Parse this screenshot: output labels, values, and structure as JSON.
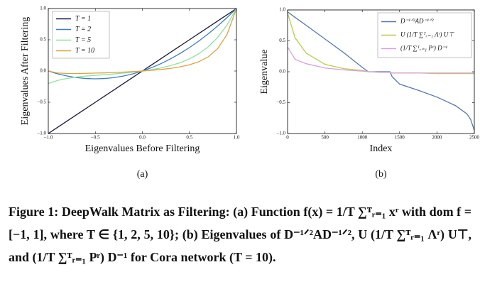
{
  "chart_data": [
    {
      "type": "line",
      "panel_label": "(a)",
      "xlabel": "Eigenvalues Before Filtering",
      "ylabel": "Eigenvalues After Filtering",
      "x": [
        -1.0,
        -0.9,
        -0.8,
        -0.7,
        -0.6,
        -0.5,
        -0.4,
        -0.3,
        -0.2,
        -0.1,
        0.0,
        0.1,
        0.2,
        0.3,
        0.4,
        0.5,
        0.6,
        0.7,
        0.8,
        0.9,
        1.0
      ],
      "series": [
        {
          "name": "T = 1",
          "color": "#1c1c3c",
          "values": [
            -1.0,
            -0.9,
            -0.8,
            -0.7,
            -0.6,
            -0.5,
            -0.4,
            -0.3,
            -0.2,
            -0.1,
            0.0,
            0.1,
            0.2,
            0.3,
            0.4,
            0.5,
            0.6,
            0.7,
            0.8,
            0.9,
            1.0
          ]
        },
        {
          "name": "T = 2",
          "color": "#3b7fc0",
          "values": [
            0.0,
            -0.045,
            -0.08,
            -0.105,
            -0.12,
            -0.125,
            -0.12,
            -0.105,
            -0.08,
            -0.045,
            0.0,
            0.055,
            0.12,
            0.195,
            0.28,
            0.375,
            0.48,
            0.595,
            0.72,
            0.855,
            1.0
          ]
        },
        {
          "name": "T = 5",
          "color": "#8fe0a0",
          "values": [
            -0.2,
            -0.151,
            -0.118,
            -0.096,
            -0.081,
            -0.069,
            -0.058,
            -0.046,
            -0.033,
            -0.018,
            0.0,
            0.022,
            0.05,
            0.086,
            0.132,
            0.194,
            0.277,
            0.388,
            0.538,
            0.737,
            1.0
          ]
        },
        {
          "name": "T = 10",
          "color": "#e0a040",
          "values": [
            0.0,
            -0.031,
            -0.04,
            -0.04,
            -0.037,
            -0.033,
            -0.029,
            -0.023,
            -0.017,
            -0.009,
            0.0,
            0.011,
            0.025,
            0.043,
            0.067,
            0.1,
            0.149,
            0.227,
            0.357,
            0.586,
            1.0
          ]
        }
      ],
      "xlim": [
        -1.0,
        1.0
      ],
      "ylim": [
        -1.0,
        1.0
      ],
      "xticks": [
        {
          "value": -1.0,
          "label": "−1.0"
        },
        {
          "value": -0.5,
          "label": "−0.5"
        },
        {
          "value": 0.0,
          "label": "0.0"
        },
        0.5,
        {
          "value": 1.0,
          "label": "1.0"
        }
      ],
      "yticks": [
        {
          "value": -1.0,
          "label": "−1.0"
        },
        {
          "value": -0.5,
          "label": "−0.5"
        },
        {
          "value": 0.0,
          "label": "0.0"
        },
        0.5,
        {
          "value": 1.0,
          "label": "1.0"
        }
      ],
      "grid": false,
      "legend": "upper-left"
    },
    {
      "type": "line",
      "panel_label": "(b)",
      "xlabel": "Index",
      "ylabel": "Eigenvalue",
      "x": [
        0,
        100,
        250,
        500,
        750,
        1000,
        1080,
        1250,
        1370,
        1400,
        1500,
        1750,
        2000,
        2250,
        2400,
        2450,
        2500
      ],
      "series": [
        {
          "name": "D⁻¹ᐟ²AD⁻¹ᐟ²",
          "color": "#5577b0",
          "values": [
            0.97,
            0.88,
            0.75,
            0.53,
            0.31,
            0.07,
            0.0,
            0.0,
            0.0,
            -0.08,
            -0.2,
            -0.3,
            -0.41,
            -0.55,
            -0.68,
            -0.77,
            -0.95
          ]
        },
        {
          "name": "U (1/T ∑ᵀᵣ₌₁ Λʳ) U⊤",
          "color": "#b8cc48",
          "values": [
            0.95,
            0.55,
            0.3,
            0.12,
            0.05,
            0.02,
            0.0,
            -0.01,
            -0.01,
            -0.02,
            -0.02,
            -0.02,
            -0.03,
            -0.03,
            -0.03,
            -0.03,
            -0.03
          ]
        },
        {
          "name": "(1/T ∑ᵀᵣ₌₁ Pʳ) D⁻¹",
          "color": "#d8a0e0",
          "values": [
            0.4,
            0.2,
            0.13,
            0.06,
            0.03,
            0.01,
            0.0,
            -0.01,
            -0.01,
            -0.02,
            -0.02,
            -0.02,
            -0.02,
            -0.02,
            -0.02,
            -0.02,
            -0.02
          ]
        }
      ],
      "xlim": [
        0,
        2500
      ],
      "ylim": [
        -1.0,
        1.0
      ],
      "xticks": [
        0,
        500,
        1000,
        1500,
        2000,
        2500
      ],
      "yticks": [
        {
          "value": -1.0,
          "label": "−1.0"
        },
        {
          "value": -0.5,
          "label": "−0.5"
        },
        {
          "value": 0.0,
          "label": "0.0"
        },
        0.5,
        {
          "value": 1.0,
          "label": "1.0"
        }
      ],
      "grid": false,
      "legend": "upper-right"
    }
  ],
  "caption": {
    "label": "Figure 1:",
    "title": "DeepWalk Matrix as Filtering:",
    "text": "(a) Function f(x) = 1/T ∑ᵀᵣ₌₁ xʳ with dom f = [−1, 1], where T ∈ {1, 2, 5, 10}; (b) Eigenvalues of D⁻¹ᐟ²AD⁻¹ᐟ², U (1/T ∑ᵀᵣ₌₁ Λʳ) U⊤, and (1/T ∑ᵀᵣ₌₁ Pʳ) D⁻¹ for Cora network (T = 10)."
  }
}
